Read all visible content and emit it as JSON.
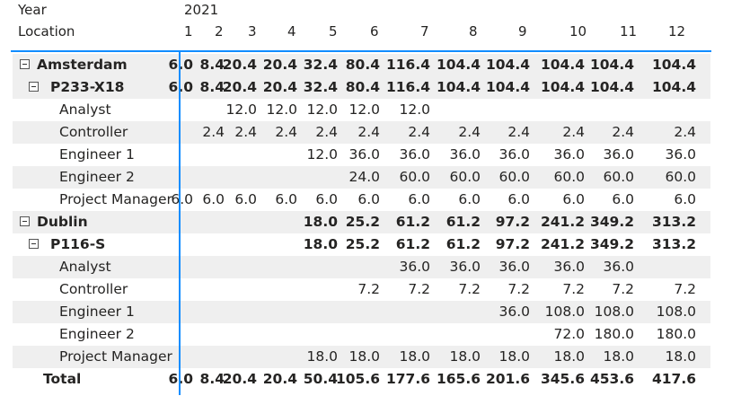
{
  "header": {
    "year_label": "Year",
    "year_value": "2021",
    "location_label": "Location",
    "months": [
      "1",
      "2",
      "3",
      "4",
      "5",
      "6",
      "7",
      "8",
      "9",
      "10",
      "11",
      "12"
    ]
  },
  "rows": [
    {
      "label": "Amsterdam",
      "level": 0,
      "expandable": true,
      "bold": true,
      "shade": true,
      "values": [
        "6.0",
        "8.4",
        "20.4",
        "20.4",
        "32.4",
        "80.4",
        "116.4",
        "104.4",
        "104.4",
        "104.4",
        "104.4",
        "104.4"
      ]
    },
    {
      "label": "P233-X18",
      "level": 1,
      "expandable": true,
      "bold": true,
      "shade": true,
      "values": [
        "6.0",
        "8.4",
        "20.4",
        "20.4",
        "32.4",
        "80.4",
        "116.4",
        "104.4",
        "104.4",
        "104.4",
        "104.4",
        "104.4"
      ]
    },
    {
      "label": "Analyst",
      "level": 2,
      "expandable": false,
      "bold": false,
      "shade": false,
      "values": [
        "",
        "",
        "12.0",
        "12.0",
        "12.0",
        "12.0",
        "12.0",
        "",
        "",
        "",
        "",
        ""
      ]
    },
    {
      "label": "Controller",
      "level": 2,
      "expandable": false,
      "bold": false,
      "shade": true,
      "values": [
        "",
        "2.4",
        "2.4",
        "2.4",
        "2.4",
        "2.4",
        "2.4",
        "2.4",
        "2.4",
        "2.4",
        "2.4",
        "2.4"
      ]
    },
    {
      "label": "Engineer 1",
      "level": 2,
      "expandable": false,
      "bold": false,
      "shade": false,
      "values": [
        "",
        "",
        "",
        "",
        "12.0",
        "36.0",
        "36.0",
        "36.0",
        "36.0",
        "36.0",
        "36.0",
        "36.0"
      ]
    },
    {
      "label": "Engineer 2",
      "level": 2,
      "expandable": false,
      "bold": false,
      "shade": true,
      "values": [
        "",
        "",
        "",
        "",
        "",
        "24.0",
        "60.0",
        "60.0",
        "60.0",
        "60.0",
        "60.0",
        "60.0"
      ]
    },
    {
      "label": "Project Manager",
      "level": 2,
      "expandable": false,
      "bold": false,
      "shade": false,
      "values": [
        "6.0",
        "6.0",
        "6.0",
        "6.0",
        "6.0",
        "6.0",
        "6.0",
        "6.0",
        "6.0",
        "6.0",
        "6.0",
        "6.0"
      ]
    },
    {
      "label": "Dublin",
      "level": 0,
      "expandable": true,
      "bold": true,
      "shade": true,
      "values": [
        "",
        "",
        "",
        "",
        "18.0",
        "25.2",
        "61.2",
        "61.2",
        "97.2",
        "241.2",
        "349.2",
        "313.2"
      ]
    },
    {
      "label": "P116-S",
      "level": 1,
      "expandable": true,
      "bold": true,
      "shade": false,
      "values": [
        "",
        "",
        "",
        "",
        "18.0",
        "25.2",
        "61.2",
        "61.2",
        "97.2",
        "241.2",
        "349.2",
        "313.2"
      ]
    },
    {
      "label": "Analyst",
      "level": 2,
      "expandable": false,
      "bold": false,
      "shade": true,
      "values": [
        "",
        "",
        "",
        "",
        "",
        "",
        "36.0",
        "36.0",
        "36.0",
        "36.0",
        "36.0",
        ""
      ]
    },
    {
      "label": "Controller",
      "level": 2,
      "expandable": false,
      "bold": false,
      "shade": false,
      "values": [
        "",
        "",
        "",
        "",
        "",
        "7.2",
        "7.2",
        "7.2",
        "7.2",
        "7.2",
        "7.2",
        "7.2"
      ]
    },
    {
      "label": "Engineer 1",
      "level": 2,
      "expandable": false,
      "bold": false,
      "shade": true,
      "values": [
        "",
        "",
        "",
        "",
        "",
        "",
        "",
        "",
        "36.0",
        "108.0",
        "108.0",
        "108.0"
      ]
    },
    {
      "label": "Engineer 2",
      "level": 2,
      "expandable": false,
      "bold": false,
      "shade": false,
      "values": [
        "",
        "",
        "",
        "",
        "",
        "",
        "",
        "",
        "",
        "72.0",
        "180.0",
        "180.0"
      ]
    },
    {
      "label": "Project Manager",
      "level": 2,
      "expandable": false,
      "bold": false,
      "shade": true,
      "values": [
        "",
        "",
        "",
        "",
        "18.0",
        "18.0",
        "18.0",
        "18.0",
        "18.0",
        "18.0",
        "18.0",
        "18.0"
      ]
    }
  ],
  "total": {
    "label": "Total",
    "values": [
      "6.0",
      "8.4",
      "20.4",
      "20.4",
      "50.4",
      "105.6",
      "177.6",
      "165.6",
      "201.6",
      "345.6",
      "453.6",
      "417.6"
    ]
  },
  "colors": {
    "accent": "#118dff",
    "shade": "#efefef",
    "text": "#252423"
  }
}
